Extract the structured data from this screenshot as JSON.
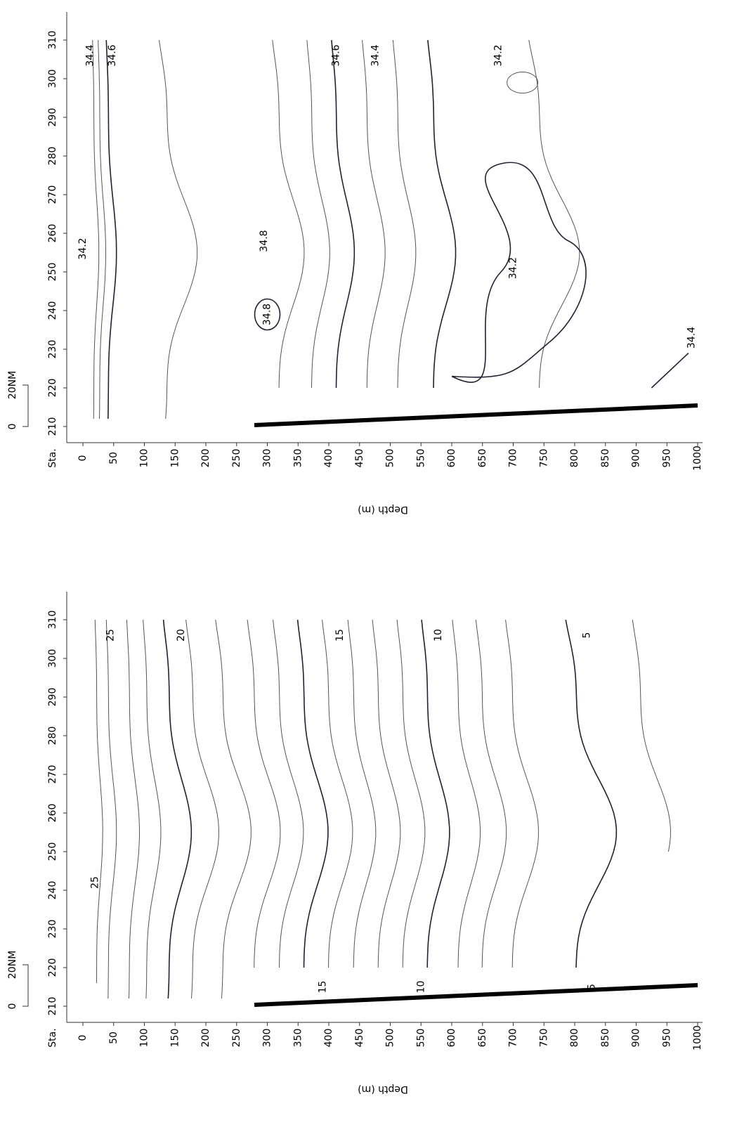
{
  "chart_data": [
    {
      "type": "contour",
      "xlabel": "Depth (m)",
      "ylabel": "Sta.",
      "scale_bar": {
        "zero": "0",
        "label": "20NM"
      },
      "xlim": [
        0,
        1000
      ],
      "xticks": [
        0,
        50,
        100,
        150,
        200,
        250,
        300,
        350,
        400,
        450,
        500,
        550,
        600,
        650,
        700,
        750,
        800,
        850,
        900,
        950,
        1000
      ],
      "ylim": [
        210,
        310
      ],
      "yticks": [
        210,
        220,
        230,
        240,
        250,
        260,
        270,
        280,
        290,
        300,
        310
      ],
      "annotations": [
        "34.4",
        "34.6",
        "34.6",
        "34.4",
        "34.2",
        "34.2",
        "34.8",
        "34.8",
        "34.2",
        "34.4"
      ]
    },
    {
      "type": "contour",
      "xlabel": "Depth (m)",
      "ylabel": "Sta.",
      "scale_bar": {
        "zero": "0",
        "label": "20NM"
      },
      "xlim": [
        0,
        1000
      ],
      "xticks": [
        0,
        50,
        100,
        150,
        200,
        250,
        300,
        350,
        400,
        450,
        500,
        550,
        600,
        650,
        700,
        750,
        800,
        850,
        900,
        950,
        1000
      ],
      "ylim": [
        210,
        310
      ],
      "yticks": [
        210,
        220,
        230,
        240,
        250,
        260,
        270,
        280,
        290,
        300,
        310
      ],
      "annotations": [
        "25",
        "20",
        "15",
        "10",
        "5",
        "25",
        "15",
        "10",
        "5"
      ]
    }
  ]
}
